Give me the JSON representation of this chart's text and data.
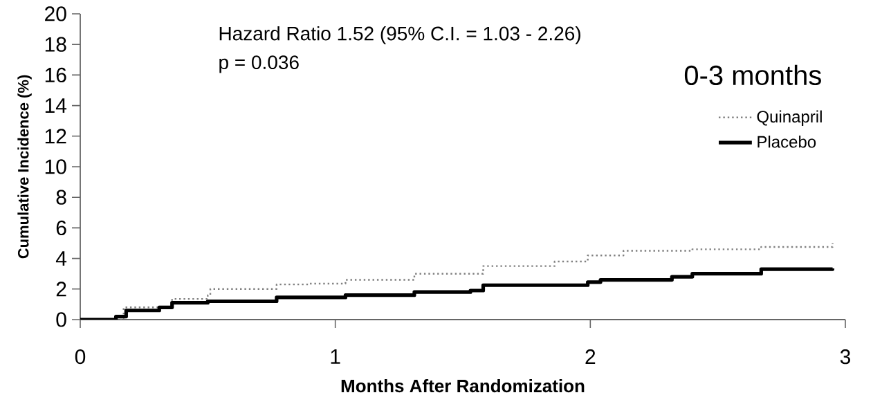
{
  "chart_data": {
    "type": "step",
    "title": "0-3 months",
    "xlabel": "Months After Randomization",
    "ylabel": "Cumulative Incidence (%)",
    "annotations": [
      "Hazard Ratio 1.52 (95% C.I. = 1.03 - 2.26)",
      "p = 0.036"
    ],
    "xlim": [
      0,
      3
    ],
    "xticks": [
      0,
      1,
      2,
      3
    ],
    "ylim": [
      0,
      20
    ],
    "yticks": [
      0,
      2,
      4,
      6,
      8,
      10,
      12,
      14,
      16,
      18,
      20
    ],
    "grid": false,
    "legend": "right",
    "series": [
      {
        "name": "Quinapril",
        "color": "#808080",
        "line_style": "dotted",
        "x": [
          0,
          0.17,
          0.36,
          0.5,
          0.51,
          0.77,
          0.9,
          1.04,
          1.31,
          1.58,
          1.86,
          1.99,
          2.13,
          2.4,
          2.67,
          2.95
        ],
        "values": [
          0,
          0.8,
          1.35,
          1.6,
          2.0,
          2.3,
          2.35,
          2.6,
          3.0,
          3.5,
          3.8,
          4.2,
          4.5,
          4.6,
          4.75,
          5.0
        ]
      },
      {
        "name": "Placebo",
        "color": "#000000",
        "line_style": "solid",
        "x": [
          0,
          0.14,
          0.18,
          0.31,
          0.36,
          0.5,
          0.77,
          1.04,
          1.31,
          1.53,
          1.58,
          1.99,
          2.04,
          2.32,
          2.4,
          2.67,
          2.95
        ],
        "values": [
          0,
          0.2,
          0.6,
          0.8,
          1.1,
          1.2,
          1.45,
          1.6,
          1.8,
          1.9,
          2.25,
          2.45,
          2.6,
          2.8,
          3.0,
          3.3,
          3.35
        ]
      }
    ]
  }
}
